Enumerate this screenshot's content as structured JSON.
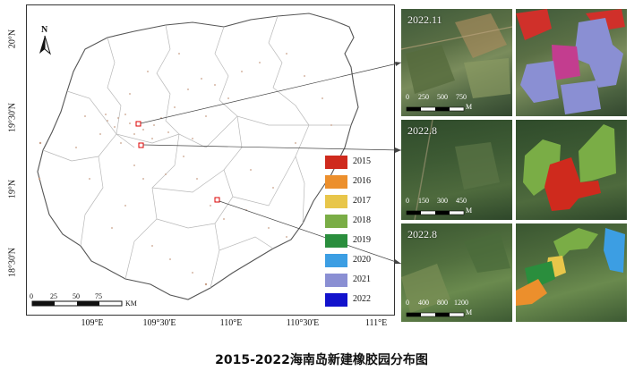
{
  "map": {
    "north_arrow_label": "N",
    "lat_labels": [
      "20°N",
      "19°30'N",
      "19°N",
      "18°30'N"
    ],
    "lon_labels": [
      "109°E",
      "109°30'E",
      "110°E",
      "110°30'E",
      "111°E"
    ],
    "scale_ticks": [
      "0",
      "25",
      "50",
      "75"
    ],
    "scale_unit": "KM"
  },
  "legend": {
    "items": [
      {
        "year": "2015",
        "color": "#cf2a1d"
      },
      {
        "year": "2016",
        "color": "#ec8f2c"
      },
      {
        "year": "2017",
        "color": "#e8c64a"
      },
      {
        "year": "2018",
        "color": "#7aad46"
      },
      {
        "year": "2019",
        "color": "#2a8e3d"
      },
      {
        "year": "2020",
        "color": "#3c9ee3"
      },
      {
        "year": "2021",
        "color": "#8a8fd3"
      },
      {
        "year": "2022",
        "color": "#1212cc"
      }
    ]
  },
  "panels": [
    {
      "date": "2022.11",
      "scale_ticks": [
        "0",
        "250",
        "500",
        "750"
      ],
      "scale_unit": "M"
    },
    {
      "date": "2022.8",
      "scale_ticks": [
        "0",
        "150",
        "300",
        "450"
      ],
      "scale_unit": "M"
    },
    {
      "date": "2022.8",
      "scale_ticks": [
        "0",
        "400",
        "800",
        "1200"
      ],
      "scale_unit": "M"
    }
  ],
  "caption": "2015-2022海南岛新建橡胶园分布图"
}
